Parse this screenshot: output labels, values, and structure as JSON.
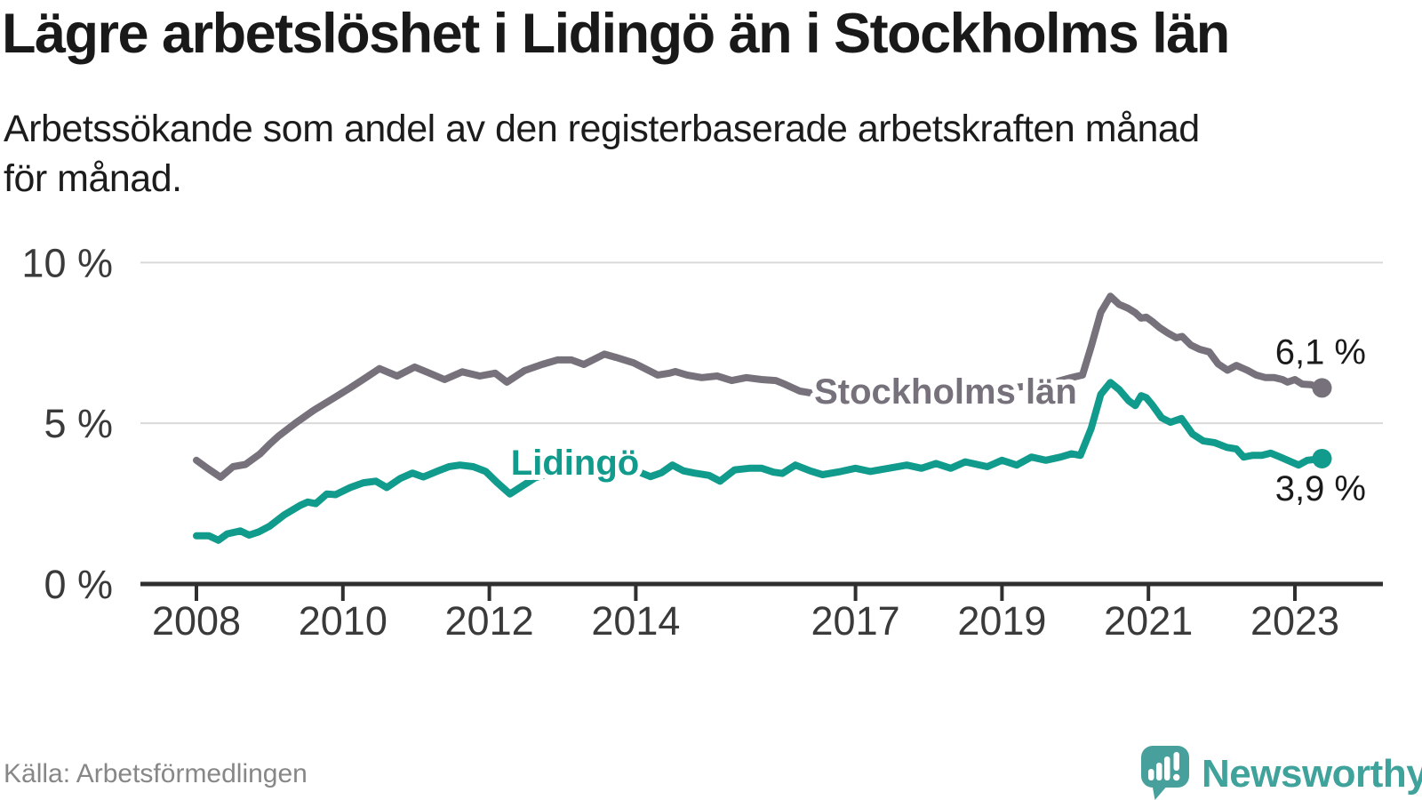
{
  "header": {
    "title": "Lägre arbetslöshet i Lidingö än i Stockholms län",
    "subtitle_lines": [
      "Arbetssökande som andel av den registerbaserade arbetskraften månad",
      "för månad."
    ]
  },
  "footer": {
    "source": "Källa: Arbetsförmedlingen",
    "logo_text": "Newsworthy"
  },
  "colors": {
    "stockholm_line": "#76717B",
    "lidingo_line": "#109B8C",
    "axis": "#2F2F2F",
    "grid": "#D9D9D9",
    "tick_label": "#3A3A3A",
    "end_label": "#1A1A1A",
    "source_text": "#878787",
    "logo": "#47A09B",
    "background": "#FFFFFF"
  },
  "chart_data": {
    "type": "line",
    "title": "Lägre arbetslöshet i Lidingö än i Stockholms län",
    "subtitle": "Arbetssökande som andel av den registerbaserade arbetskraften månad för månad.",
    "xlabel": "",
    "ylabel": "",
    "unit": "%",
    "grid": "horizontal-only",
    "legend_position": "inline-line-labels",
    "x_range": [
      2007.25,
      2023.8
    ],
    "y_range": [
      0,
      10.5
    ],
    "x_ticks": [
      {
        "year": 2008,
        "label": "2008"
      },
      {
        "year": 2010,
        "label": "2010"
      },
      {
        "year": 2012,
        "label": "2012"
      },
      {
        "year": 2014,
        "label": "2014"
      },
      {
        "year": 2017,
        "label": "2017"
      },
      {
        "year": 2019,
        "label": "2019"
      },
      {
        "year": 2021,
        "label": "2021"
      },
      {
        "year": 2023,
        "label": "2023"
      }
    ],
    "y_ticks": [
      {
        "value": 0,
        "label": "0 %"
      },
      {
        "value": 5,
        "label": "5 %"
      },
      {
        "value": 10,
        "label": "10 %"
      }
    ],
    "series": [
      {
        "name": "Stockholms län",
        "color": "#76717B",
        "end_label": "6,1 %",
        "end_value": 6.1,
        "label_at": [
          2018.23,
          6.0
        ],
        "points": [
          [
            2008.0,
            3.85
          ],
          [
            2008.15,
            3.6
          ],
          [
            2008.33,
            3.32
          ],
          [
            2008.5,
            3.65
          ],
          [
            2008.67,
            3.72
          ],
          [
            2008.87,
            4.05
          ],
          [
            2009.0,
            4.35
          ],
          [
            2009.12,
            4.6
          ],
          [
            2009.35,
            5.0
          ],
          [
            2009.6,
            5.4
          ],
          [
            2009.85,
            5.75
          ],
          [
            2010.1,
            6.1
          ],
          [
            2010.3,
            6.4
          ],
          [
            2010.5,
            6.7
          ],
          [
            2010.74,
            6.47
          ],
          [
            2010.98,
            6.75
          ],
          [
            2011.14,
            6.6
          ],
          [
            2011.39,
            6.36
          ],
          [
            2011.63,
            6.6
          ],
          [
            2011.87,
            6.47
          ],
          [
            2012.08,
            6.56
          ],
          [
            2012.24,
            6.28
          ],
          [
            2012.48,
            6.64
          ],
          [
            2012.72,
            6.83
          ],
          [
            2012.93,
            6.97
          ],
          [
            2013.12,
            6.97
          ],
          [
            2013.29,
            6.83
          ],
          [
            2013.57,
            7.15
          ],
          [
            2013.73,
            7.05
          ],
          [
            2013.97,
            6.88
          ],
          [
            2014.18,
            6.64
          ],
          [
            2014.3,
            6.5
          ],
          [
            2014.46,
            6.56
          ],
          [
            2014.54,
            6.61
          ],
          [
            2014.7,
            6.5
          ],
          [
            2014.9,
            6.42
          ],
          [
            2015.11,
            6.47
          ],
          [
            2015.31,
            6.33
          ],
          [
            2015.51,
            6.42
          ],
          [
            2015.72,
            6.36
          ],
          [
            2015.91,
            6.33
          ],
          [
            2016.03,
            6.22
          ],
          [
            2016.24,
            6.0
          ],
          [
            2016.5,
            5.9
          ],
          [
            2016.8,
            5.95
          ],
          [
            2017.1,
            6.0
          ],
          [
            2017.4,
            5.92
          ],
          [
            2017.7,
            5.98
          ],
          [
            2018.0,
            5.95
          ],
          [
            2018.3,
            6.0
          ],
          [
            2018.6,
            6.05
          ],
          [
            2018.9,
            6.1
          ],
          [
            2019.2,
            6.12
          ],
          [
            2019.5,
            6.2
          ],
          [
            2019.75,
            6.3
          ],
          [
            2019.95,
            6.42
          ],
          [
            2020.1,
            6.5
          ],
          [
            2020.22,
            7.4
          ],
          [
            2020.35,
            8.45
          ],
          [
            2020.48,
            8.95
          ],
          [
            2020.6,
            8.7
          ],
          [
            2020.72,
            8.58
          ],
          [
            2020.82,
            8.44
          ],
          [
            2020.9,
            8.27
          ],
          [
            2020.97,
            8.3
          ],
          [
            2021.05,
            8.17
          ],
          [
            2021.15,
            7.98
          ],
          [
            2021.27,
            7.8
          ],
          [
            2021.38,
            7.66
          ],
          [
            2021.46,
            7.7
          ],
          [
            2021.58,
            7.43
          ],
          [
            2021.7,
            7.3
          ],
          [
            2021.83,
            7.22
          ],
          [
            2021.95,
            6.85
          ],
          [
            2022.08,
            6.65
          ],
          [
            2022.2,
            6.8
          ],
          [
            2022.35,
            6.65
          ],
          [
            2022.47,
            6.5
          ],
          [
            2022.6,
            6.42
          ],
          [
            2022.72,
            6.42
          ],
          [
            2022.83,
            6.36
          ],
          [
            2022.9,
            6.28
          ],
          [
            2023.0,
            6.36
          ],
          [
            2023.1,
            6.22
          ],
          [
            2023.22,
            6.2
          ],
          [
            2023.37,
            6.1
          ]
        ]
      },
      {
        "name": "Lidingö",
        "color": "#109B8C",
        "end_label": "3,9 %",
        "end_value": 3.9,
        "label_at": [
          2013.17,
          3.79
        ],
        "points": [
          [
            2008.0,
            1.5
          ],
          [
            2008.17,
            1.5
          ],
          [
            2008.3,
            1.36
          ],
          [
            2008.42,
            1.56
          ],
          [
            2008.6,
            1.65
          ],
          [
            2008.72,
            1.52
          ],
          [
            2008.85,
            1.62
          ],
          [
            2009.0,
            1.8
          ],
          [
            2009.2,
            2.15
          ],
          [
            2009.42,
            2.45
          ],
          [
            2009.52,
            2.55
          ],
          [
            2009.63,
            2.5
          ],
          [
            2009.78,
            2.8
          ],
          [
            2009.9,
            2.78
          ],
          [
            2010.1,
            3.0
          ],
          [
            2010.28,
            3.15
          ],
          [
            2010.45,
            3.2
          ],
          [
            2010.6,
            3.0
          ],
          [
            2010.78,
            3.28
          ],
          [
            2010.95,
            3.45
          ],
          [
            2011.1,
            3.33
          ],
          [
            2011.28,
            3.5
          ],
          [
            2011.45,
            3.65
          ],
          [
            2011.6,
            3.7
          ],
          [
            2011.78,
            3.65
          ],
          [
            2011.95,
            3.5
          ],
          [
            2012.1,
            3.17
          ],
          [
            2012.28,
            2.8
          ],
          [
            2012.45,
            3.05
          ],
          [
            2012.62,
            3.3
          ],
          [
            2012.8,
            3.42
          ],
          [
            2013.0,
            3.38
          ],
          [
            2013.2,
            3.52
          ],
          [
            2013.45,
            3.6
          ],
          [
            2013.65,
            3.62
          ],
          [
            2013.85,
            3.52
          ],
          [
            2014.05,
            3.48
          ],
          [
            2014.2,
            3.34
          ],
          [
            2014.35,
            3.46
          ],
          [
            2014.5,
            3.7
          ],
          [
            2014.65,
            3.52
          ],
          [
            2014.8,
            3.45
          ],
          [
            2015.0,
            3.38
          ],
          [
            2015.15,
            3.2
          ],
          [
            2015.35,
            3.55
          ],
          [
            2015.55,
            3.6
          ],
          [
            2015.72,
            3.6
          ],
          [
            2015.88,
            3.48
          ],
          [
            2016.0,
            3.44
          ],
          [
            2016.18,
            3.7
          ],
          [
            2016.38,
            3.52
          ],
          [
            2016.55,
            3.4
          ],
          [
            2016.8,
            3.5
          ],
          [
            2017.0,
            3.6
          ],
          [
            2017.2,
            3.5
          ],
          [
            2017.45,
            3.6
          ],
          [
            2017.7,
            3.7
          ],
          [
            2017.9,
            3.6
          ],
          [
            2018.1,
            3.75
          ],
          [
            2018.3,
            3.6
          ],
          [
            2018.5,
            3.8
          ],
          [
            2018.8,
            3.65
          ],
          [
            2019.0,
            3.85
          ],
          [
            2019.2,
            3.7
          ],
          [
            2019.4,
            3.95
          ],
          [
            2019.6,
            3.85
          ],
          [
            2019.8,
            3.95
          ],
          [
            2019.95,
            4.05
          ],
          [
            2020.07,
            4.0
          ],
          [
            2020.22,
            4.85
          ],
          [
            2020.35,
            5.9
          ],
          [
            2020.48,
            6.27
          ],
          [
            2020.6,
            6.05
          ],
          [
            2020.73,
            5.7
          ],
          [
            2020.82,
            5.55
          ],
          [
            2020.9,
            5.86
          ],
          [
            2020.97,
            5.8
          ],
          [
            2021.05,
            5.58
          ],
          [
            2021.18,
            5.17
          ],
          [
            2021.3,
            5.03
          ],
          [
            2021.45,
            5.15
          ],
          [
            2021.6,
            4.67
          ],
          [
            2021.75,
            4.45
          ],
          [
            2021.9,
            4.4
          ],
          [
            2022.07,
            4.25
          ],
          [
            2022.2,
            4.2
          ],
          [
            2022.3,
            3.95
          ],
          [
            2022.42,
            4.0
          ],
          [
            2022.55,
            4.0
          ],
          [
            2022.67,
            4.07
          ],
          [
            2022.8,
            3.95
          ],
          [
            2022.9,
            3.85
          ],
          [
            2023.05,
            3.7
          ],
          [
            2023.17,
            3.85
          ],
          [
            2023.37,
            3.9
          ]
        ]
      }
    ]
  }
}
